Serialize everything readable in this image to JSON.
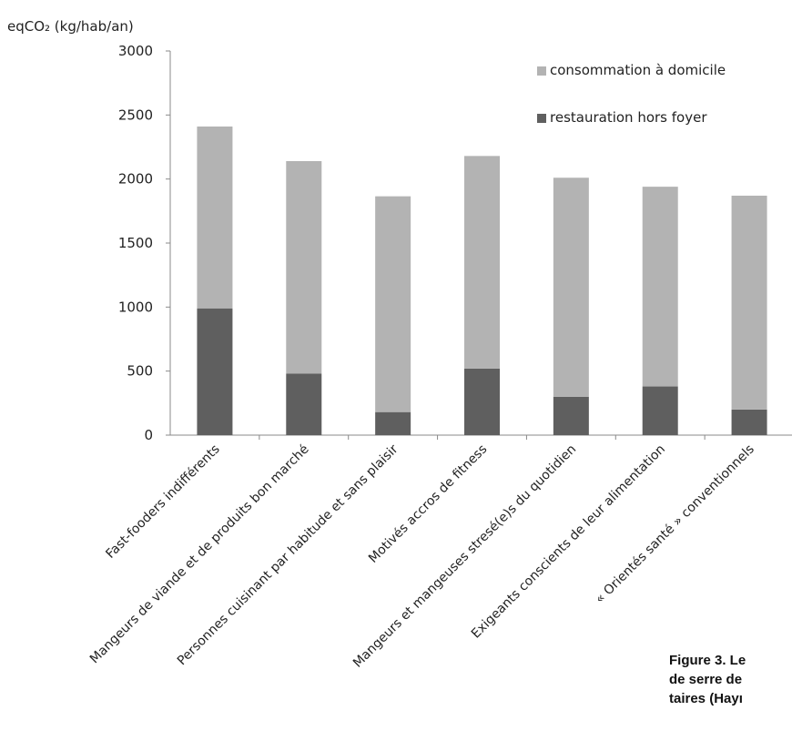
{
  "chart_data": {
    "type": "bar",
    "stacked": true,
    "ylabel": "eqCO₂ (kg/hab/an)",
    "ylim": [
      0,
      3000
    ],
    "yticks": [
      0,
      500,
      1000,
      1500,
      2000,
      2500,
      3000
    ],
    "grid": false,
    "legend_position": "top-right",
    "categories": [
      "Fast-fooders indifférents",
      "Mangeurs de viande et de produits bon marché",
      "Personnes cuisinant par habitude et sans plaisir",
      "Motivés accros de fitness",
      "Mangeurs et mangeuses stresé(e)s du quotidien",
      "Exigeants conscients de leur alimentation",
      "« Orientés santé » conventionnels"
    ],
    "series": [
      {
        "name": "restauration hors foyer",
        "color": "#5f5f5f",
        "values": [
          990,
          480,
          180,
          520,
          300,
          380,
          200
        ]
      },
      {
        "name": "consommation à domicile",
        "color": "#b3b3b3",
        "values": [
          1420,
          1660,
          1685,
          1660,
          1710,
          1560,
          1670
        ]
      }
    ]
  },
  "caption": {
    "lines": [
      "Figure 3. Le",
      "de serre de",
      "taires (Hayı"
    ]
  }
}
